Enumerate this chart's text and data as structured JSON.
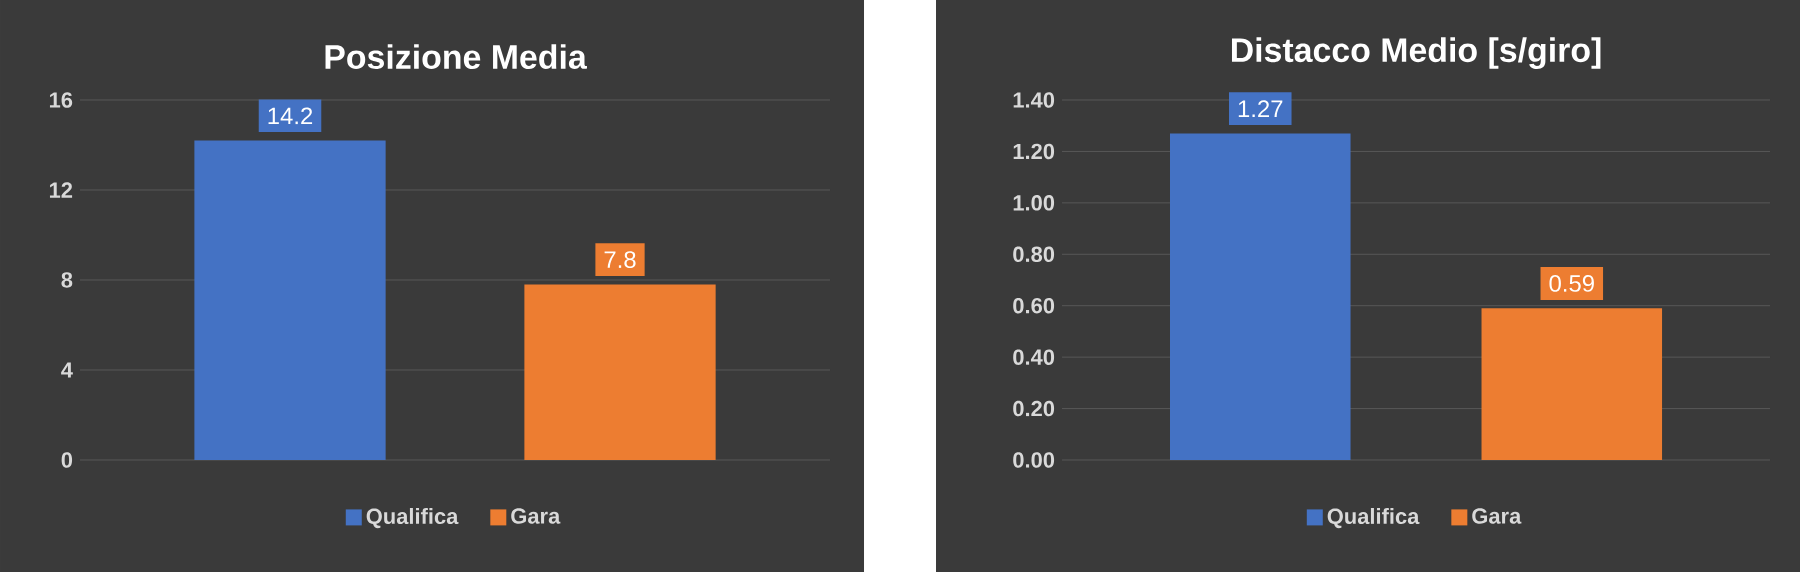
{
  "chart_data": [
    {
      "type": "bar",
      "title": "Posizione Media",
      "categories": [
        null
      ],
      "series": [
        {
          "name": "Qualifica",
          "color": "#4472c4",
          "values": [
            14.2
          ]
        },
        {
          "name": "Gara",
          "color": "#ed7d31",
          "values": [
            7.8
          ]
        }
      ],
      "ylim": [
        0,
        16
      ],
      "yticks": [
        0,
        4,
        8,
        12,
        16
      ],
      "grid": "y",
      "legend": "bottom",
      "data_labels": true
    },
    {
      "type": "bar",
      "title": "Distacco Medio [s/giro]",
      "categories": [
        null
      ],
      "series": [
        {
          "name": "Qualifica",
          "color": "#4472c4",
          "values": [
            1.27
          ]
        },
        {
          "name": "Gara",
          "color": "#ed7d31",
          "values": [
            0.59
          ]
        }
      ],
      "ylim": [
        0,
        1.4
      ],
      "yticks": [
        {
          "value": 0,
          "label": "0.00"
        },
        {
          "value": 0.2,
          "label": "0.20"
        },
        {
          "value": 0.4,
          "label": "0.40"
        },
        {
          "value": 0.6,
          "label": "0.60"
        },
        {
          "value": 0.8,
          "label": "0.80"
        },
        {
          "value": 1.0,
          "label": "1.00"
        },
        {
          "value": 1.2,
          "label": "1.20"
        },
        {
          "value": 1.4,
          "label": "1.40"
        }
      ],
      "grid": "y",
      "legend": "bottom",
      "data_labels": true
    }
  ]
}
